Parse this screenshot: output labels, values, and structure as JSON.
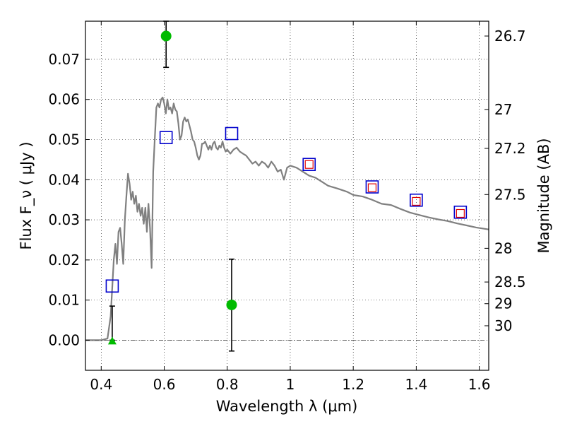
{
  "chart_data": {
    "type": "scatter",
    "xlabel": "Wavelength  λ (μm)",
    "ylabel": "Flux  F_ν  ( μJy )",
    "ylabel_right": "Magnitude (AB)",
    "xlim": [
      0.35,
      1.63
    ],
    "ylim": [
      -0.0075,
      0.0795
    ],
    "grid": true,
    "x_ticks": [
      {
        "value": 0.4,
        "label": "0.4"
      },
      {
        "value": 0.6,
        "label": "0.6"
      },
      {
        "value": 0.8,
        "label": "0.8"
      },
      {
        "value": 1.0,
        "label": "1"
      },
      {
        "value": 1.2,
        "label": "1.2"
      },
      {
        "value": 1.4,
        "label": "1.4"
      },
      {
        "value": 1.6,
        "label": "1.6"
      }
    ],
    "y_ticks": [
      {
        "value": 0.0,
        "label": "0.00"
      },
      {
        "value": 0.01,
        "label": "0.01"
      },
      {
        "value": 0.02,
        "label": "0.02"
      },
      {
        "value": 0.03,
        "label": "0.03"
      },
      {
        "value": 0.04,
        "label": "0.04"
      },
      {
        "value": 0.05,
        "label": "0.05"
      },
      {
        "value": 0.06,
        "label": "0.06"
      },
      {
        "value": 0.07,
        "label": "0.07"
      }
    ],
    "magnitude_ticks": [
      {
        "flux": 0.0758,
        "label": "26.7"
      },
      {
        "flux": 0.0575,
        "label": "27"
      },
      {
        "flux": 0.0478,
        "label": "27.2"
      },
      {
        "flux": 0.0363,
        "label": "27.5"
      },
      {
        "flux": 0.0229,
        "label": "28"
      },
      {
        "flux": 0.0145,
        "label": "28.5"
      },
      {
        "flux": 0.0091,
        "label": "29"
      },
      {
        "flux": 0.0036,
        "label": "30"
      }
    ],
    "model_spectrum": {
      "color": "#808080",
      "points": [
        [
          0.35,
          0.0
        ],
        [
          0.4,
          0.0
        ],
        [
          0.42,
          0.0004
        ],
        [
          0.43,
          0.006
        ],
        [
          0.435,
          0.013
        ],
        [
          0.44,
          0.02
        ],
        [
          0.445,
          0.024
        ],
        [
          0.45,
          0.019
        ],
        [
          0.455,
          0.027
        ],
        [
          0.46,
          0.028
        ],
        [
          0.465,
          0.024
        ],
        [
          0.47,
          0.019
        ],
        [
          0.475,
          0.03
        ],
        [
          0.48,
          0.036
        ],
        [
          0.485,
          0.0415
        ],
        [
          0.49,
          0.039
        ],
        [
          0.495,
          0.035
        ],
        [
          0.5,
          0.037
        ],
        [
          0.505,
          0.034
        ],
        [
          0.51,
          0.036
        ],
        [
          0.515,
          0.032
        ],
        [
          0.52,
          0.034
        ],
        [
          0.525,
          0.031
        ],
        [
          0.53,
          0.033
        ],
        [
          0.535,
          0.029
        ],
        [
          0.54,
          0.033
        ],
        [
          0.545,
          0.027
        ],
        [
          0.55,
          0.034
        ],
        [
          0.555,
          0.028
        ],
        [
          0.56,
          0.018
        ],
        [
          0.565,
          0.042
        ],
        [
          0.57,
          0.05
        ],
        [
          0.575,
          0.058
        ],
        [
          0.58,
          0.059
        ],
        [
          0.585,
          0.058
        ],
        [
          0.59,
          0.06
        ],
        [
          0.595,
          0.0605
        ],
        [
          0.6,
          0.059
        ],
        [
          0.605,
          0.0565
        ],
        [
          0.61,
          0.06
        ],
        [
          0.615,
          0.0575
        ],
        [
          0.62,
          0.058
        ],
        [
          0.625,
          0.0565
        ],
        [
          0.63,
          0.059
        ],
        [
          0.635,
          0.0575
        ],
        [
          0.64,
          0.057
        ],
        [
          0.645,
          0.054
        ],
        [
          0.65,
          0.05
        ],
        [
          0.655,
          0.051
        ],
        [
          0.66,
          0.0545
        ],
        [
          0.665,
          0.0555
        ],
        [
          0.67,
          0.0545
        ],
        [
          0.675,
          0.055
        ],
        [
          0.68,
          0.0535
        ],
        [
          0.685,
          0.052
        ],
        [
          0.69,
          0.05
        ],
        [
          0.695,
          0.0495
        ],
        [
          0.7,
          0.048
        ],
        [
          0.705,
          0.046
        ],
        [
          0.71,
          0.045
        ],
        [
          0.715,
          0.046
        ],
        [
          0.72,
          0.049
        ],
        [
          0.725,
          0.049
        ],
        [
          0.73,
          0.0495
        ],
        [
          0.735,
          0.0485
        ],
        [
          0.74,
          0.0475
        ],
        [
          0.745,
          0.0485
        ],
        [
          0.75,
          0.0475
        ],
        [
          0.755,
          0.049
        ],
        [
          0.76,
          0.0495
        ],
        [
          0.765,
          0.048
        ],
        [
          0.77,
          0.0475
        ],
        [
          0.775,
          0.0485
        ],
        [
          0.78,
          0.048
        ],
        [
          0.785,
          0.0495
        ],
        [
          0.79,
          0.048
        ],
        [
          0.795,
          0.047
        ],
        [
          0.8,
          0.0475
        ],
        [
          0.81,
          0.0465
        ],
        [
          0.82,
          0.0475
        ],
        [
          0.83,
          0.048
        ],
        [
          0.84,
          0.047
        ],
        [
          0.85,
          0.0465
        ],
        [
          0.86,
          0.046
        ],
        [
          0.87,
          0.045
        ],
        [
          0.88,
          0.044
        ],
        [
          0.89,
          0.0445
        ],
        [
          0.9,
          0.0435
        ],
        [
          0.91,
          0.0445
        ],
        [
          0.92,
          0.044
        ],
        [
          0.93,
          0.043
        ],
        [
          0.94,
          0.0445
        ],
        [
          0.95,
          0.0435
        ],
        [
          0.96,
          0.042
        ],
        [
          0.97,
          0.0425
        ],
        [
          0.98,
          0.04
        ],
        [
          0.99,
          0.043
        ],
        [
          1.0,
          0.0435
        ],
        [
          1.02,
          0.043
        ],
        [
          1.04,
          0.042
        ],
        [
          1.06,
          0.041
        ],
        [
          1.08,
          0.0405
        ],
        [
          1.1,
          0.0395
        ],
        [
          1.12,
          0.0385
        ],
        [
          1.15,
          0.0378
        ],
        [
          1.18,
          0.037
        ],
        [
          1.2,
          0.0362
        ],
        [
          1.23,
          0.0358
        ],
        [
          1.26,
          0.035
        ],
        [
          1.29,
          0.034
        ],
        [
          1.32,
          0.0337
        ],
        [
          1.35,
          0.0327
        ],
        [
          1.38,
          0.0318
        ],
        [
          1.41,
          0.0312
        ],
        [
          1.44,
          0.0306
        ],
        [
          1.47,
          0.0301
        ],
        [
          1.5,
          0.0297
        ],
        [
          1.53,
          0.0291
        ],
        [
          1.56,
          0.0286
        ],
        [
          1.59,
          0.0281
        ],
        [
          1.63,
          0.0276
        ]
      ]
    },
    "model_photometry": {
      "color": "#0000cc",
      "points": [
        {
          "x": 0.435,
          "y": 0.0135
        },
        {
          "x": 0.606,
          "y": 0.0505
        },
        {
          "x": 0.814,
          "y": 0.0515
        },
        {
          "x": 1.06,
          "y": 0.0438
        },
        {
          "x": 1.26,
          "y": 0.0382
        },
        {
          "x": 1.4,
          "y": 0.0349
        },
        {
          "x": 1.54,
          "y": 0.0319
        }
      ]
    },
    "observed_ir": {
      "color": "#e00000",
      "points": [
        {
          "x": 1.06,
          "y": 0.0438
        },
        {
          "x": 1.26,
          "y": 0.038
        },
        {
          "x": 1.4,
          "y": 0.0346
        },
        {
          "x": 1.54,
          "y": 0.0316
        }
      ]
    },
    "optical_detections": {
      "color": "#00bb00",
      "points": [
        {
          "x": 0.606,
          "y": 0.0758,
          "err_low": 0.068,
          "err_high": 0.0795
        },
        {
          "x": 0.814,
          "y": 0.0088,
          "err_low": -0.0027,
          "err_high": 0.0202
        }
      ]
    },
    "optical_upper_limit": {
      "color": "#00bb00",
      "point": {
        "x": 0.435,
        "y": 0.0,
        "err_low": 0.0,
        "err_high": 0.0085
      }
    }
  }
}
